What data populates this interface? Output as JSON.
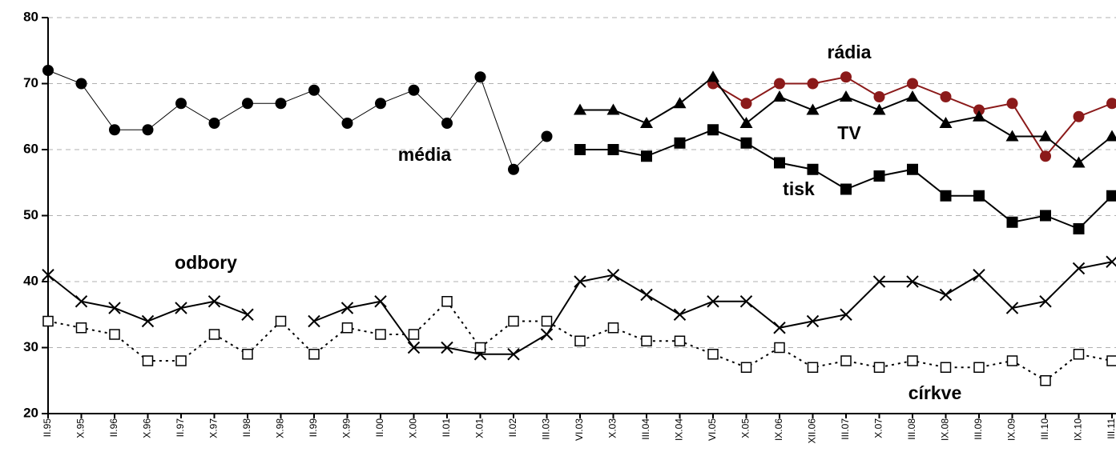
{
  "chart_data": {
    "type": "line",
    "categories": [
      "II.95",
      "X.95",
      "II.96",
      "X.96",
      "II.97",
      "X.97",
      "II.98",
      "X.98",
      "II.99",
      "X.99",
      "II.00",
      "X.00",
      "II.01",
      "X.01",
      "II.02",
      "III.03",
      "VI.03",
      "X.03",
      "III.04",
      "IX.04",
      "VI.05",
      "X.05",
      "IX.06",
      "XII.06",
      "III.07",
      "X.07",
      "III.08",
      "IX.08",
      "III.09",
      "IX.09",
      "III.10",
      "IX.10",
      "III.11"
    ],
    "ylim": [
      20,
      80
    ],
    "yticks": [
      20,
      30,
      40,
      50,
      60,
      70,
      80
    ],
    "grid": true,
    "series": [
      {
        "name": "média",
        "color": "#000000",
        "marker": "circle",
        "values": [
          72,
          70,
          63,
          63,
          67,
          64,
          67,
          67,
          69,
          64,
          67,
          69,
          64,
          71,
          57,
          62,
          null,
          null,
          null,
          null,
          null,
          null,
          null,
          null,
          null,
          null,
          null,
          null,
          null,
          null,
          null,
          null,
          null
        ]
      },
      {
        "name": "rádia",
        "color": "#8b1a1a",
        "marker": "circle",
        "values": [
          null,
          null,
          null,
          null,
          null,
          null,
          null,
          null,
          null,
          null,
          null,
          null,
          null,
          null,
          null,
          null,
          null,
          null,
          null,
          null,
          70,
          67,
          70,
          70,
          71,
          68,
          70,
          68,
          66,
          67,
          59,
          65,
          67
        ]
      },
      {
        "name": "TV",
        "color": "#000000",
        "marker": "triangle",
        "values": [
          null,
          null,
          null,
          null,
          null,
          null,
          null,
          null,
          null,
          null,
          null,
          null,
          null,
          null,
          null,
          null,
          66,
          66,
          64,
          67,
          71,
          64,
          68,
          66,
          68,
          66,
          68,
          64,
          65,
          62,
          62,
          58,
          62
        ]
      },
      {
        "name": "tisk",
        "color": "#000000",
        "marker": "square",
        "values": [
          null,
          null,
          null,
          null,
          null,
          null,
          null,
          null,
          null,
          null,
          null,
          null,
          null,
          null,
          null,
          null,
          60,
          60,
          59,
          61,
          63,
          61,
          58,
          57,
          54,
          56,
          57,
          53,
          53,
          49,
          50,
          48,
          53
        ]
      },
      {
        "name": "odbory",
        "color": "#000000",
        "marker": "cross",
        "values": [
          41,
          37,
          36,
          34,
          36,
          37,
          35,
          null,
          34,
          36,
          37,
          30,
          30,
          29,
          29,
          32,
          40,
          41,
          38,
          35,
          37,
          37,
          33,
          34,
          35,
          40,
          40,
          38,
          41,
          36,
          37,
          42,
          43
        ]
      },
      {
        "name": "církve",
        "color": "#000000",
        "marker": "open-square",
        "dashed": true,
        "values": [
          34,
          33,
          32,
          28,
          28,
          32,
          29,
          34,
          29,
          33,
          32,
          32,
          37,
          30,
          34,
          34,
          31,
          33,
          31,
          31,
          29,
          27,
          30,
          27,
          28,
          27,
          28,
          27,
          27,
          28,
          25,
          29,
          28
        ]
      }
    ]
  }
}
